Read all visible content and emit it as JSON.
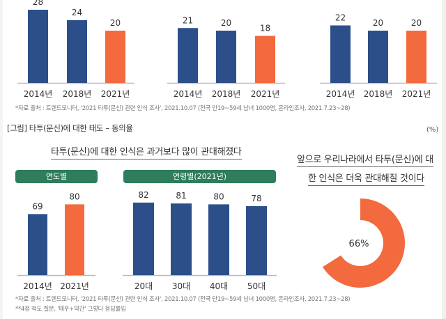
{
  "chart_data": [
    {
      "type": "bar",
      "title": "",
      "categories": [
        "2014년",
        "2018년",
        "2021년"
      ],
      "values": [
        28,
        24,
        20
      ],
      "highlight_index": 2,
      "xlabel": "",
      "ylabel": ""
    },
    {
      "type": "bar",
      "title": "",
      "categories": [
        "2014년",
        "2018년",
        "2021년"
      ],
      "values": [
        21,
        20,
        18
      ],
      "highlight_index": 2,
      "xlabel": "",
      "ylabel": ""
    },
    {
      "type": "bar",
      "title": "",
      "categories": [
        "2014년",
        "2018년",
        "2021년"
      ],
      "values": [
        22,
        20,
        20
      ],
      "highlight_index": 2,
      "xlabel": "",
      "ylabel": ""
    },
    {
      "type": "bar",
      "title": "연도별",
      "categories": [
        "2014년",
        "2021년"
      ],
      "values": [
        69,
        80
      ],
      "highlight_index": 1,
      "xlabel": "",
      "ylabel": "%"
    },
    {
      "type": "bar",
      "title": "연령별(2021년)",
      "categories": [
        "20대",
        "30대",
        "40대",
        "50대"
      ],
      "values": [
        82,
        81,
        80,
        78
      ],
      "highlight_index": -1,
      "xlabel": "",
      "ylabel": "%"
    },
    {
      "type": "pie",
      "title": "앞으로 우리나라에서 타투(문신)에 대한 인식은 더욱 관대해질 것이다",
      "values": [
        66
      ],
      "label": "66%"
    }
  ],
  "colors": {
    "bar": "#2c4f8a",
    "highlight": "#f26a3d",
    "pill": "#2e7d5b",
    "axis": "#bbbbbb"
  },
  "top_source": "*자료 출처 : 트렌드모니터, '2021 타투(문신) 관련 인식 조사', 2021.10.07 (전국 만19~59세 남녀 1000명, 온라인조사, 2021.7.23~28)",
  "figure_title": "[그림] 타투(문신)에 대한 태도 – 동의율",
  "unit": "(%)",
  "headline_left": "타투(문신)에 대한 인식은 과거보다 많이 관대해졌다",
  "pill_year": "연도별",
  "pill_age": "연령별(2021년)",
  "headline_right_1": "앞으로 우리나라에서 타투(문신)에 대",
  "headline_right_2": "한 인식은 더욱 관대해질 것이다",
  "bottom_source_1": "*자료 출처 : 트렌드모니터, '2021 타투(문신) 관련 인식 조사', 2021.10.07 (전국 만19~59세 남녀 1000명, 온라인조사, 2021.7.23~28)",
  "bottom_source_2": "**4점 척도 질문, '매우+약간' 그렇다 응답률임"
}
